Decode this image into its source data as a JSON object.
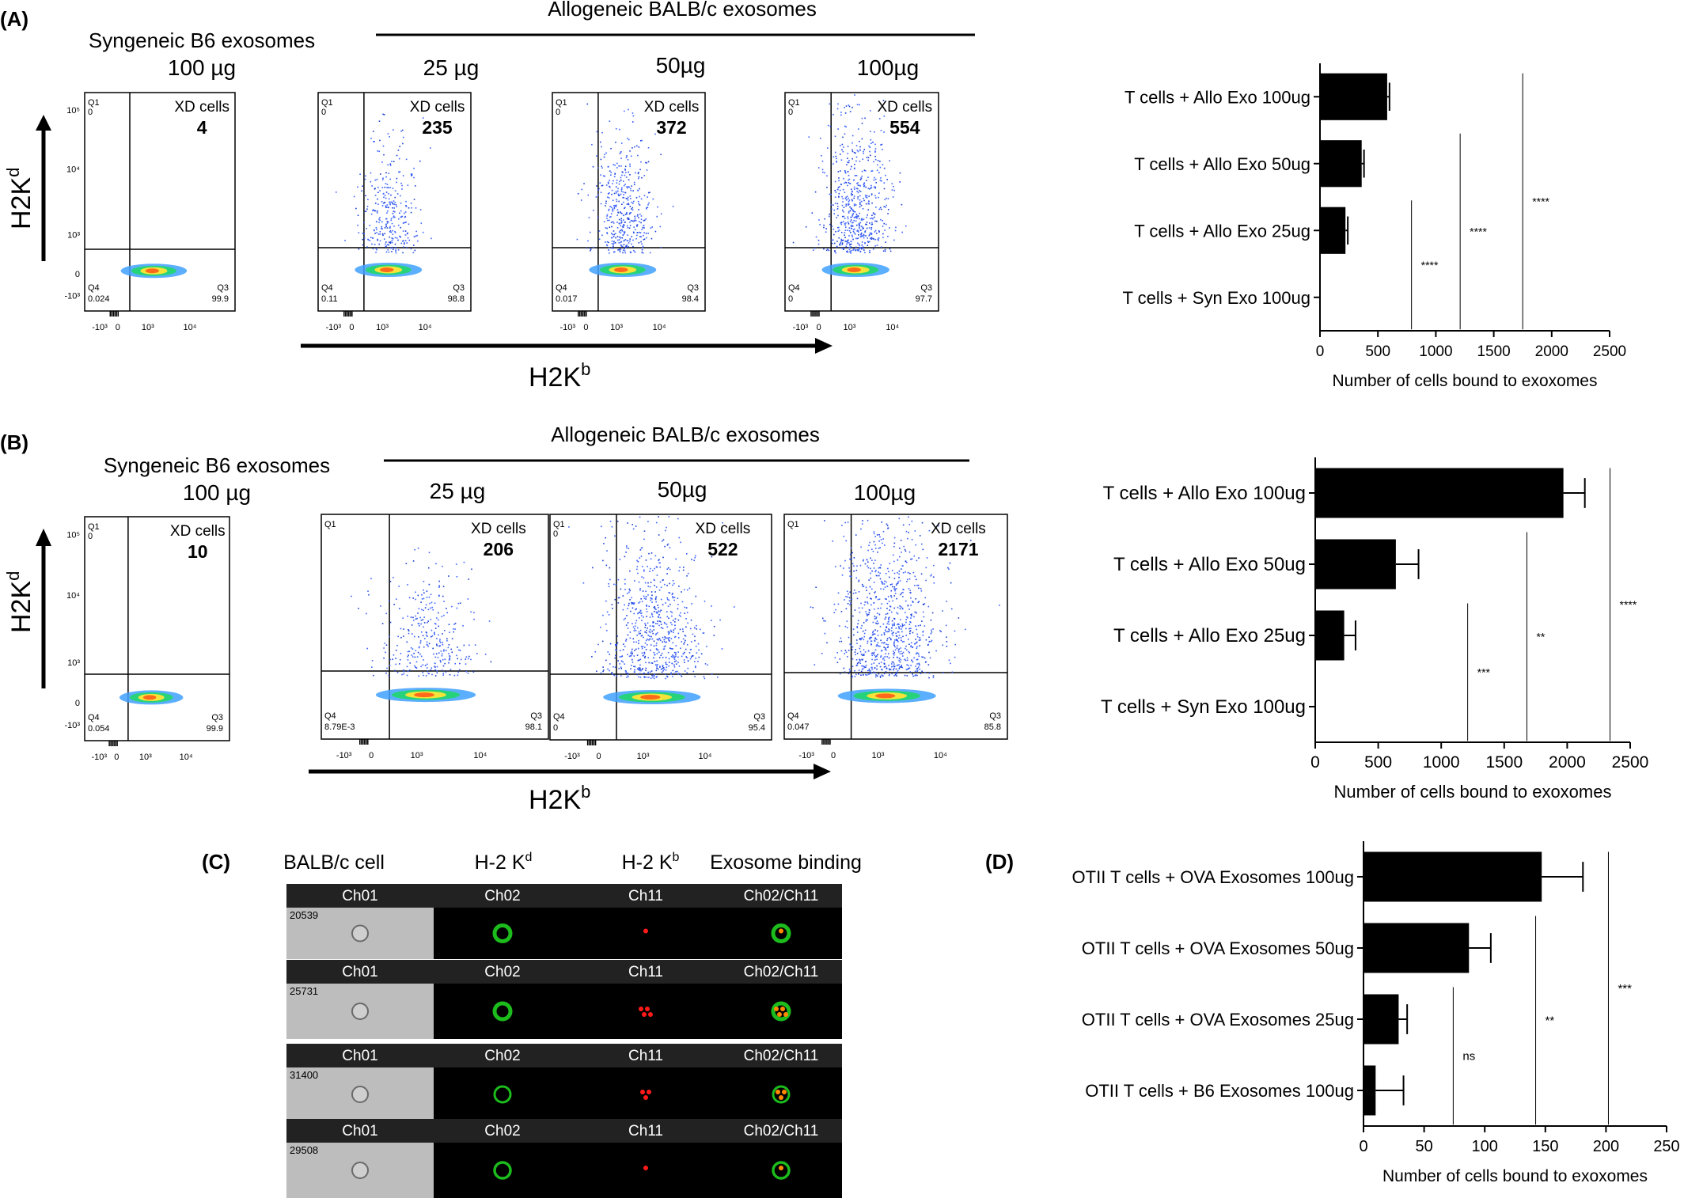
{
  "panels": {
    "A": {
      "letter": "(A)",
      "syn_header": [
        "Syngeneic B6 exosomes",
        "100 µg"
      ],
      "allo_header": "Allogeneic BALB/c exosomes",
      "doses": [
        "25 µg",
        "50µg",
        "100µg"
      ],
      "y_axis_label": "H2K",
      "y_axis_sup": "d",
      "x_axis_label": "H2K",
      "x_axis_sup": "b",
      "plots": [
        {
          "xd_label": "XD cells",
          "xd_count": "4",
          "q1": "Q1",
          "q1v": "0",
          "q3": "Q3",
          "q3v": "99.9",
          "q4": "Q4",
          "q4v": "0.024",
          "spread": 0.0
        },
        {
          "xd_label": "XD cells",
          "xd_count": "235",
          "q1": "Q1",
          "q1v": "0",
          "q3": "Q3",
          "q3v": "98.8",
          "q4": "Q4",
          "q4v": "0.11",
          "spread": 0.35
        },
        {
          "xd_label": "XD cells",
          "xd_count": "372",
          "q1": "Q1",
          "q1v": "0",
          "q3": "Q3",
          "q3v": "98.4",
          "q4": "Q4",
          "q4v": "0.017",
          "spread": 0.5
        },
        {
          "xd_label": "XD cells",
          "xd_count": "554",
          "q1": "Q1",
          "q1v": "0",
          "q3": "Q3",
          "q3v": "97.7",
          "q4": "Q4",
          "q4v": "0",
          "spread": 0.7
        }
      ],
      "y_ticks": [
        "10⁵",
        "10⁴",
        "10³",
        "0",
        "-10³"
      ],
      "x_ticks": [
        "-10³",
        "0",
        "10³",
        "10⁴"
      ]
    },
    "B": {
      "letter": "(B)",
      "syn_header": [
        "Syngeneic B6 exosomes",
        "100 µg"
      ],
      "allo_header": "Allogeneic BALB/c exosomes",
      "doses": [
        "25 µg",
        "50µg",
        "100µg"
      ],
      "y_axis_label": "H2K",
      "y_axis_sup": "d",
      "x_axis_label": "H2K",
      "x_axis_sup": "b",
      "plots": [
        {
          "xd_label": "XD cells",
          "xd_count": "10",
          "q1": "Q1",
          "q1v": "0",
          "q3": "Q3",
          "q3v": "99.9",
          "q4": "Q4",
          "q4v": "0.054",
          "spread": 0.0
        },
        {
          "xd_label": "XD cells",
          "xd_count": "206",
          "q1": "Q1",
          "q1v": "",
          "q3": "Q3",
          "q3v": "98.1",
          "q4": "Q4",
          "q4v": "8.79E-3",
          "spread": 0.35
        },
        {
          "xd_label": "XD cells",
          "xd_count": "522",
          "q1": "Q1",
          "q1v": "0",
          "q3": "Q3",
          "q3v": "95.4",
          "q4": "Q4",
          "q4v": "0",
          "spread": 0.8
        },
        {
          "xd_label": "XD cells",
          "xd_count": "2171",
          "q1": "Q1",
          "q1v": "",
          "q3": "Q3",
          "q3v": "85.8",
          "q4": "Q4",
          "q4v": "0.047",
          "spread": 1.0
        }
      ],
      "y_ticks": [
        "10⁵",
        "10⁴",
        "10³",
        "0",
        "-10³"
      ],
      "x_ticks": [
        "-10³",
        "0",
        "10³",
        "10⁴"
      ]
    },
    "C": {
      "letter": "(C)",
      "col_headers": [
        "BALB/c cell",
        "H-2 K",
        "H-2 K",
        "Exosome binding"
      ],
      "col_sups": [
        "",
        "d",
        "b",
        ""
      ],
      "channels": [
        "Ch01",
        "Ch02",
        "Ch11",
        "Ch02/Ch11"
      ],
      "rows": [
        {
          "id": "20539",
          "green": 1.0,
          "red": 0.2
        },
        {
          "id": "25731",
          "green": 1.0,
          "red": 1.0
        },
        {
          "id": "31400",
          "green": 0.6,
          "red": 0.7
        },
        {
          "id": "29508",
          "green": 0.7,
          "red": 0.3
        }
      ]
    },
    "D": {
      "letter": "(D)"
    }
  },
  "chart_data": [
    {
      "type": "bar",
      "orientation": "horizontal",
      "categories": [
        "T cells + Allo Exo 100ug",
        "T cells + Allo Exo 50ug",
        "T cells + Allo Exo 25ug",
        "T cells + Syn Exo 100ug"
      ],
      "values": [
        580,
        360,
        220,
        0
      ],
      "errors": [
        20,
        20,
        20,
        0
      ],
      "xlabel": "Number of cells bound to exoxomes",
      "xlim": [
        0,
        2500
      ],
      "xticks": [
        0,
        500,
        1000,
        1500,
        2000,
        2500
      ],
      "significance": [
        {
          "label": "****",
          "x": 790
        },
        {
          "label": "****",
          "x": 1210
        },
        {
          "label": "****",
          "x": 1750
        }
      ]
    },
    {
      "type": "bar",
      "orientation": "horizontal",
      "categories": [
        "T cells + Allo Exo 100ug",
        "T cells + Allo Exo 50ug",
        "T cells + Allo Exo 25ug",
        "T cells + Syn Exo 100ug"
      ],
      "values": [
        1970,
        640,
        230,
        0
      ],
      "errors": [
        170,
        180,
        90,
        0
      ],
      "xlabel": "Number of cells bound to exoxomes",
      "xlim": [
        0,
        2500
      ],
      "xticks": [
        0,
        500,
        1000,
        1500,
        2000,
        2500
      ],
      "significance": [
        {
          "label": "***",
          "x": 1210
        },
        {
          "label": "**",
          "x": 1680
        },
        {
          "label": "****",
          "x": 2340
        }
      ]
    },
    {
      "type": "bar",
      "orientation": "horizontal",
      "categories": [
        "OTII T cells + OVA Exosomes 100ug",
        "OTII T cells + OVA Exosomes 50ug",
        "OTII T cells + OVA Exosomes 25ug",
        "OTII T cells + B6 Exosomes 100ug"
      ],
      "values": [
        147,
        87,
        29,
        10
      ],
      "errors": [
        34,
        18,
        7,
        23
      ],
      "xlabel": "Number of cells bound to exoxomes",
      "xlim": [
        0,
        250
      ],
      "xticks": [
        0,
        50,
        100,
        150,
        200,
        250
      ],
      "significance": [
        {
          "label": "ns",
          "x": 74
        },
        {
          "label": "**",
          "x": 142
        },
        {
          "label": "***",
          "x": 202
        }
      ]
    }
  ]
}
